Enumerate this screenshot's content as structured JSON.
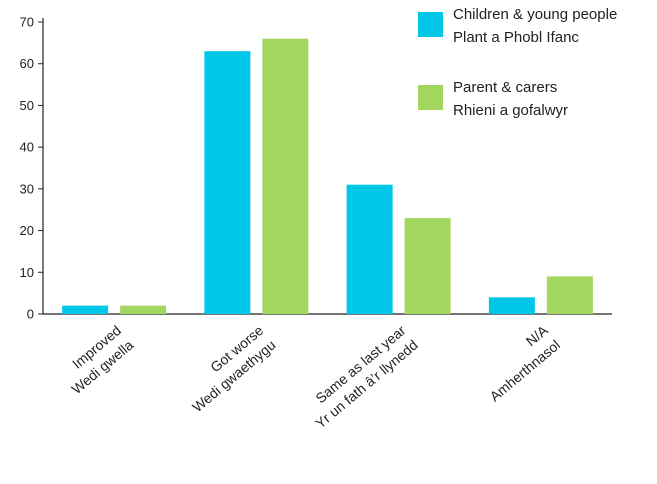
{
  "chart_data": {
    "type": "bar",
    "categories": [
      {
        "line1": "Improved",
        "line2": "Wedi gwella"
      },
      {
        "line1": "Got worse",
        "line2": "Wedi gwaethygu"
      },
      {
        "line1": "Same as last year",
        "line2": "Yr un fath â’r llynedd"
      },
      {
        "line1": "N/A",
        "line2": "Amherthnasol"
      }
    ],
    "series": [
      {
        "name_line1": "Children & young people",
        "name_line2": "Plant a Phobl Ifanc",
        "color": "#00c6e8",
        "values": [
          2,
          63,
          31,
          4
        ]
      },
      {
        "name_line1": "Parent & carers",
        "name_line2": "Rhieni a gofalwyr",
        "color": "#a3d65e",
        "values": [
          2,
          66,
          23,
          9
        ]
      }
    ],
    "ylim": [
      0,
      70
    ],
    "yticks": [
      "0",
      "10",
      "20",
      "30",
      "40",
      "50",
      "60",
      "70"
    ],
    "grid": false,
    "legend_position": "top-right"
  }
}
